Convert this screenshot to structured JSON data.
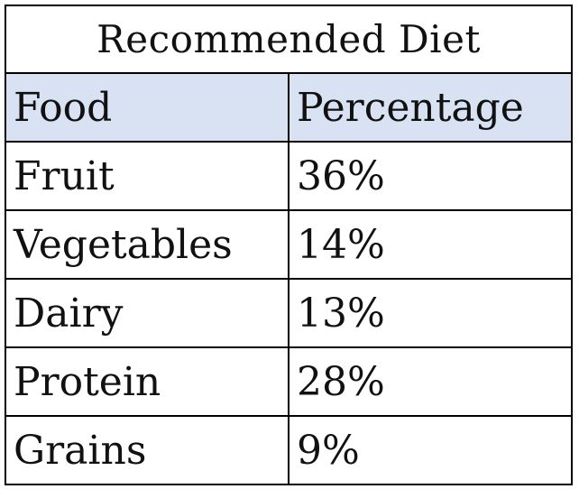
{
  "table": {
    "title": "Recommended Diet",
    "headers": [
      "Food",
      "Percentage"
    ],
    "rows": [
      [
        "Fruit",
        "36%"
      ],
      [
        "Vegetables",
        "14%"
      ],
      [
        "Dairy",
        "13%"
      ],
      [
        "Protein",
        "28%"
      ],
      [
        "Grains",
        "9%"
      ]
    ]
  },
  "colors": {
    "header_bg": "#d9e2f3",
    "border": "#000000",
    "background": "#ffffff"
  }
}
